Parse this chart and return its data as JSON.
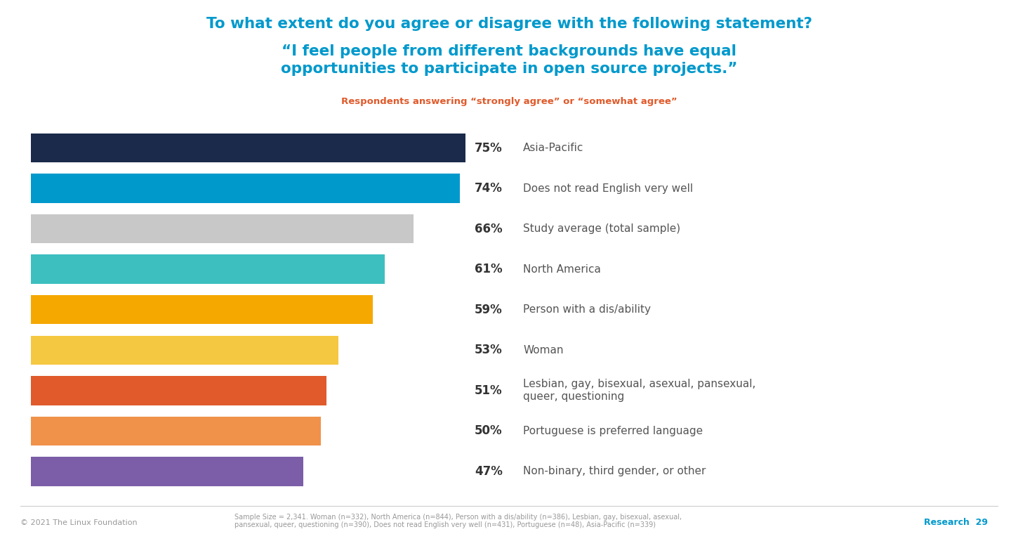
{
  "title_line1": "To what extent do you agree or disagree with the following statement?",
  "title_line2": "“I feel people from different backgrounds have equal\nopportunities to participate in open source projects.”",
  "subtitle": "Respondents answering “strongly agree” or “somewhat agree”",
  "categories": [
    "Asia-Pacific",
    "Does not read English very well",
    "Study average (total sample)",
    "North America",
    "Person with a dis/ability",
    "Woman",
    "Lesbian, gay, bisexual, asexual, pansexual,\nqueer, questioning",
    "Portuguese is preferred language",
    "Non-binary, third gender, or other"
  ],
  "values": [
    75,
    74,
    66,
    61,
    59,
    53,
    51,
    50,
    47
  ],
  "bar_colors": [
    "#1b2a4a",
    "#0099cc",
    "#c8c8c8",
    "#3dbfbf",
    "#f5a800",
    "#f5c842",
    "#e05a2b",
    "#f0924a",
    "#7b5ea7"
  ],
  "bar_height": 0.72,
  "xlim": [
    0,
    100
  ],
  "bg_color": "#ffffff",
  "title_color1": "#0099cc",
  "title_color2": "#0099cc",
  "subtitle_color": "#e05a2b",
  "label_pct_color": "#333333",
  "label_text_color": "#555555",
  "footer_left": "© 2021 The Linux Foundation",
  "footer_center": "Sample Size = 2,341. Woman (n=332), North America (n=844), Person with a dis/ability (n=386), Lesbian, gay, bisexual, asexual,\npansexual, queer, questioning (n=390), Does not read English very well (n=431), Portuguese (n=48), Asia-Pacific (n=339)",
  "footer_page": "Research  29"
}
